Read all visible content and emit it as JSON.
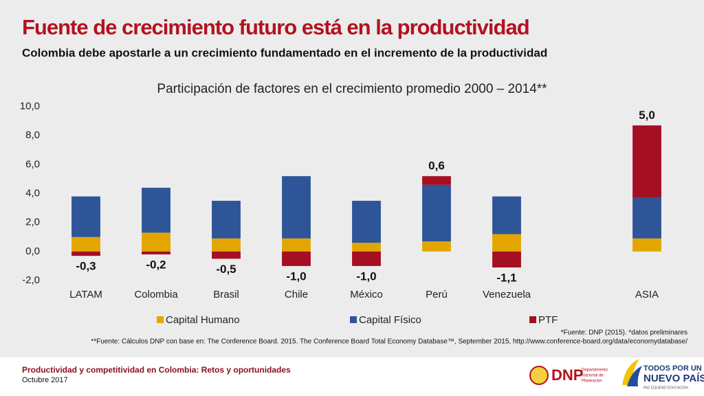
{
  "header": {
    "title": "Fuente de crecimiento futuro está en la productividad",
    "subtitle": "Colombia debe apostarle a un crecimiento fundamentado en el incremento de la productividad"
  },
  "chart_data": {
    "type": "bar",
    "stacked": true,
    "title": "Participación de factores en el crecimiento promedio 2000 – 2014**",
    "categories": [
      "LATAM",
      "Colombia",
      "Brasil",
      "Chile",
      "México",
      "Perú",
      "Venezuela",
      null,
      "ASIA"
    ],
    "series": [
      {
        "name": "Capital Humano",
        "color": "#e3a600",
        "values": [
          1.0,
          1.3,
          0.9,
          0.9,
          0.6,
          0.7,
          1.2,
          null,
          0.9
        ]
      },
      {
        "name": "Capital Físico",
        "color": "#2e5597",
        "values": [
          2.8,
          3.1,
          2.6,
          4.3,
          2.9,
          3.9,
          2.6,
          null,
          2.8
        ]
      },
      {
        "name": "PTF",
        "color": "#a50f22",
        "values": [
          -0.3,
          -0.2,
          -0.5,
          -1.0,
          -1.0,
          0.6,
          -1.1,
          null,
          5.0
        ],
        "value_labels": [
          "-0,3",
          "-0,2",
          "-0,5",
          "-1,0",
          "-1,0",
          "0,6",
          "-1,1",
          null,
          "5,0"
        ]
      }
    ],
    "ylim": [
      -2,
      10
    ],
    "yticks": [
      {
        "value": -2,
        "label": "-2,0"
      },
      {
        "value": 0,
        "label": "0,0"
      },
      {
        "value": 2,
        "label": "2,0"
      },
      {
        "value": 4,
        "label": "4,0"
      },
      {
        "value": 6,
        "label": "6,0"
      },
      {
        "value": 8,
        "label": "8,0"
      },
      {
        "value": 10,
        "label": "10,0"
      }
    ],
    "grid": false,
    "legend": "bottom"
  },
  "notes": [
    "*Fuente: DNP (2015). *datos preliminares",
    "**Fuente: Cálculos DNP con base en: The Conference Board. 2015. The Conference Board Total Economy Database™, September 2015, http://www.conference-board.org/data/economydatabase/"
  ],
  "footer": {
    "line1": "Productividad y competitividad en Colombia: Retos y oportunidades",
    "line2": "Octubre 2017"
  },
  "logos": {
    "dnp": "DNP",
    "dnp_sub1": "Departamento",
    "dnp_sub2": "Nacional de",
    "dnp_sub3": "Planeación",
    "gov1": "TODOS POR UN",
    "gov2": "NUEVO PAÍS",
    "gov3": "PAZ  EQUIDAD  EDUCACIÓN"
  }
}
